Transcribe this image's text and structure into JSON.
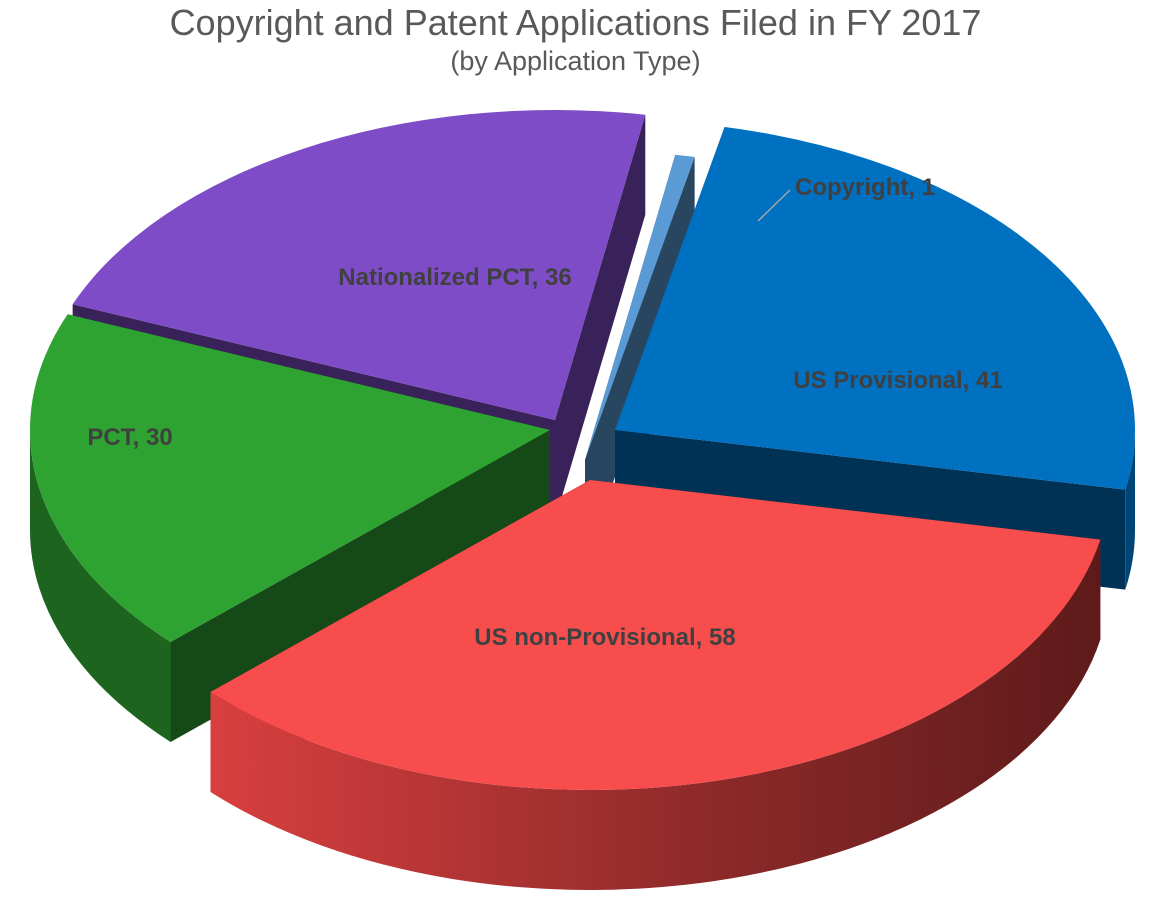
{
  "chart_data": {
    "type": "pie",
    "title": "Copyright and Patent Applications Filed in FY 2017",
    "subtitle": "(by Application Type)",
    "slices": [
      {
        "label": "Copyright, 1",
        "category": "Copyright",
        "value": 1,
        "color": "#5B9BD5"
      },
      {
        "label": "US Provisional, 41",
        "category": "US Provisional",
        "value": 41,
        "color": "#0070C0"
      },
      {
        "label": "US non-Provisional, 58",
        "category": "US non-Provisional",
        "value": 58,
        "color": "#F84D4D"
      },
      {
        "label": "PCT, 30",
        "category": "PCT",
        "value": 30,
        "color": "#2EA332"
      },
      {
        "label": "Nationalized PCT, 36",
        "category": "Nationalized PCT",
        "value": 36,
        "color": "#7E4CC7"
      }
    ],
    "legend": "none",
    "style": "3d-exploded"
  }
}
